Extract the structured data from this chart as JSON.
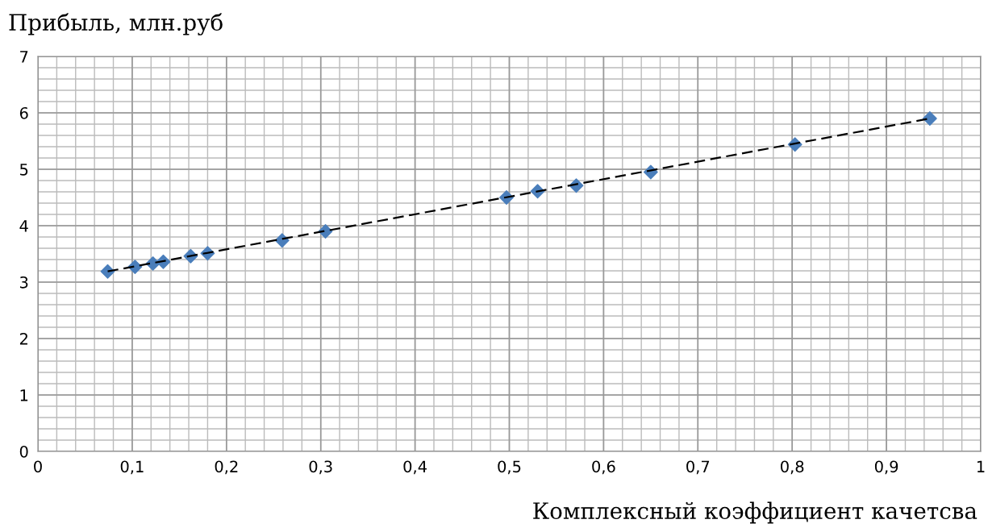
{
  "chart_data": {
    "type": "scatter",
    "ylabel": "Прибыль, млн.руб",
    "xlabel": "Комплексный коэффициент качетсва",
    "series": [
      {
        "color": "#4a7ebb",
        "marker": "diamond",
        "x": [
          0.074,
          0.103,
          0.122,
          0.133,
          0.162,
          0.18,
          0.259,
          0.305,
          0.497,
          0.53,
          0.571,
          0.65,
          0.803,
          0.946
        ],
        "values": [
          3.19,
          3.27,
          3.33,
          3.36,
          3.46,
          3.51,
          3.74,
          3.9,
          4.5,
          4.61,
          4.71,
          4.95,
          5.44,
          5.9
        ]
      },
      {
        "type": "line",
        "color": "#000000",
        "line_style": "dashed",
        "marker": "none",
        "x": [
          0.074,
          0.946
        ],
        "values": [
          3.19,
          5.9
        ]
      }
    ],
    "xlim": [
      0,
      1
    ],
    "xticks": [
      {
        "value": 0,
        "label": "0"
      },
      {
        "value": 0.1,
        "label": "0,1"
      },
      {
        "value": 0.2,
        "label": "0,2"
      },
      {
        "value": 0.3,
        "label": "0,3"
      },
      {
        "value": 0.4,
        "label": "0,4"
      },
      {
        "value": 0.5,
        "label": "0,5"
      },
      {
        "value": 0.6,
        "label": "0,6"
      },
      {
        "value": 0.7,
        "label": "0,7"
      },
      {
        "value": 0.8,
        "label": "0,8"
      },
      {
        "value": 0.9,
        "label": "0,9"
      },
      {
        "value": 1,
        "label": "1"
      }
    ],
    "ylim": [
      0,
      7
    ],
    "yticks": [
      0,
      1,
      2,
      3,
      4,
      5,
      6,
      7
    ],
    "grid": true
  }
}
